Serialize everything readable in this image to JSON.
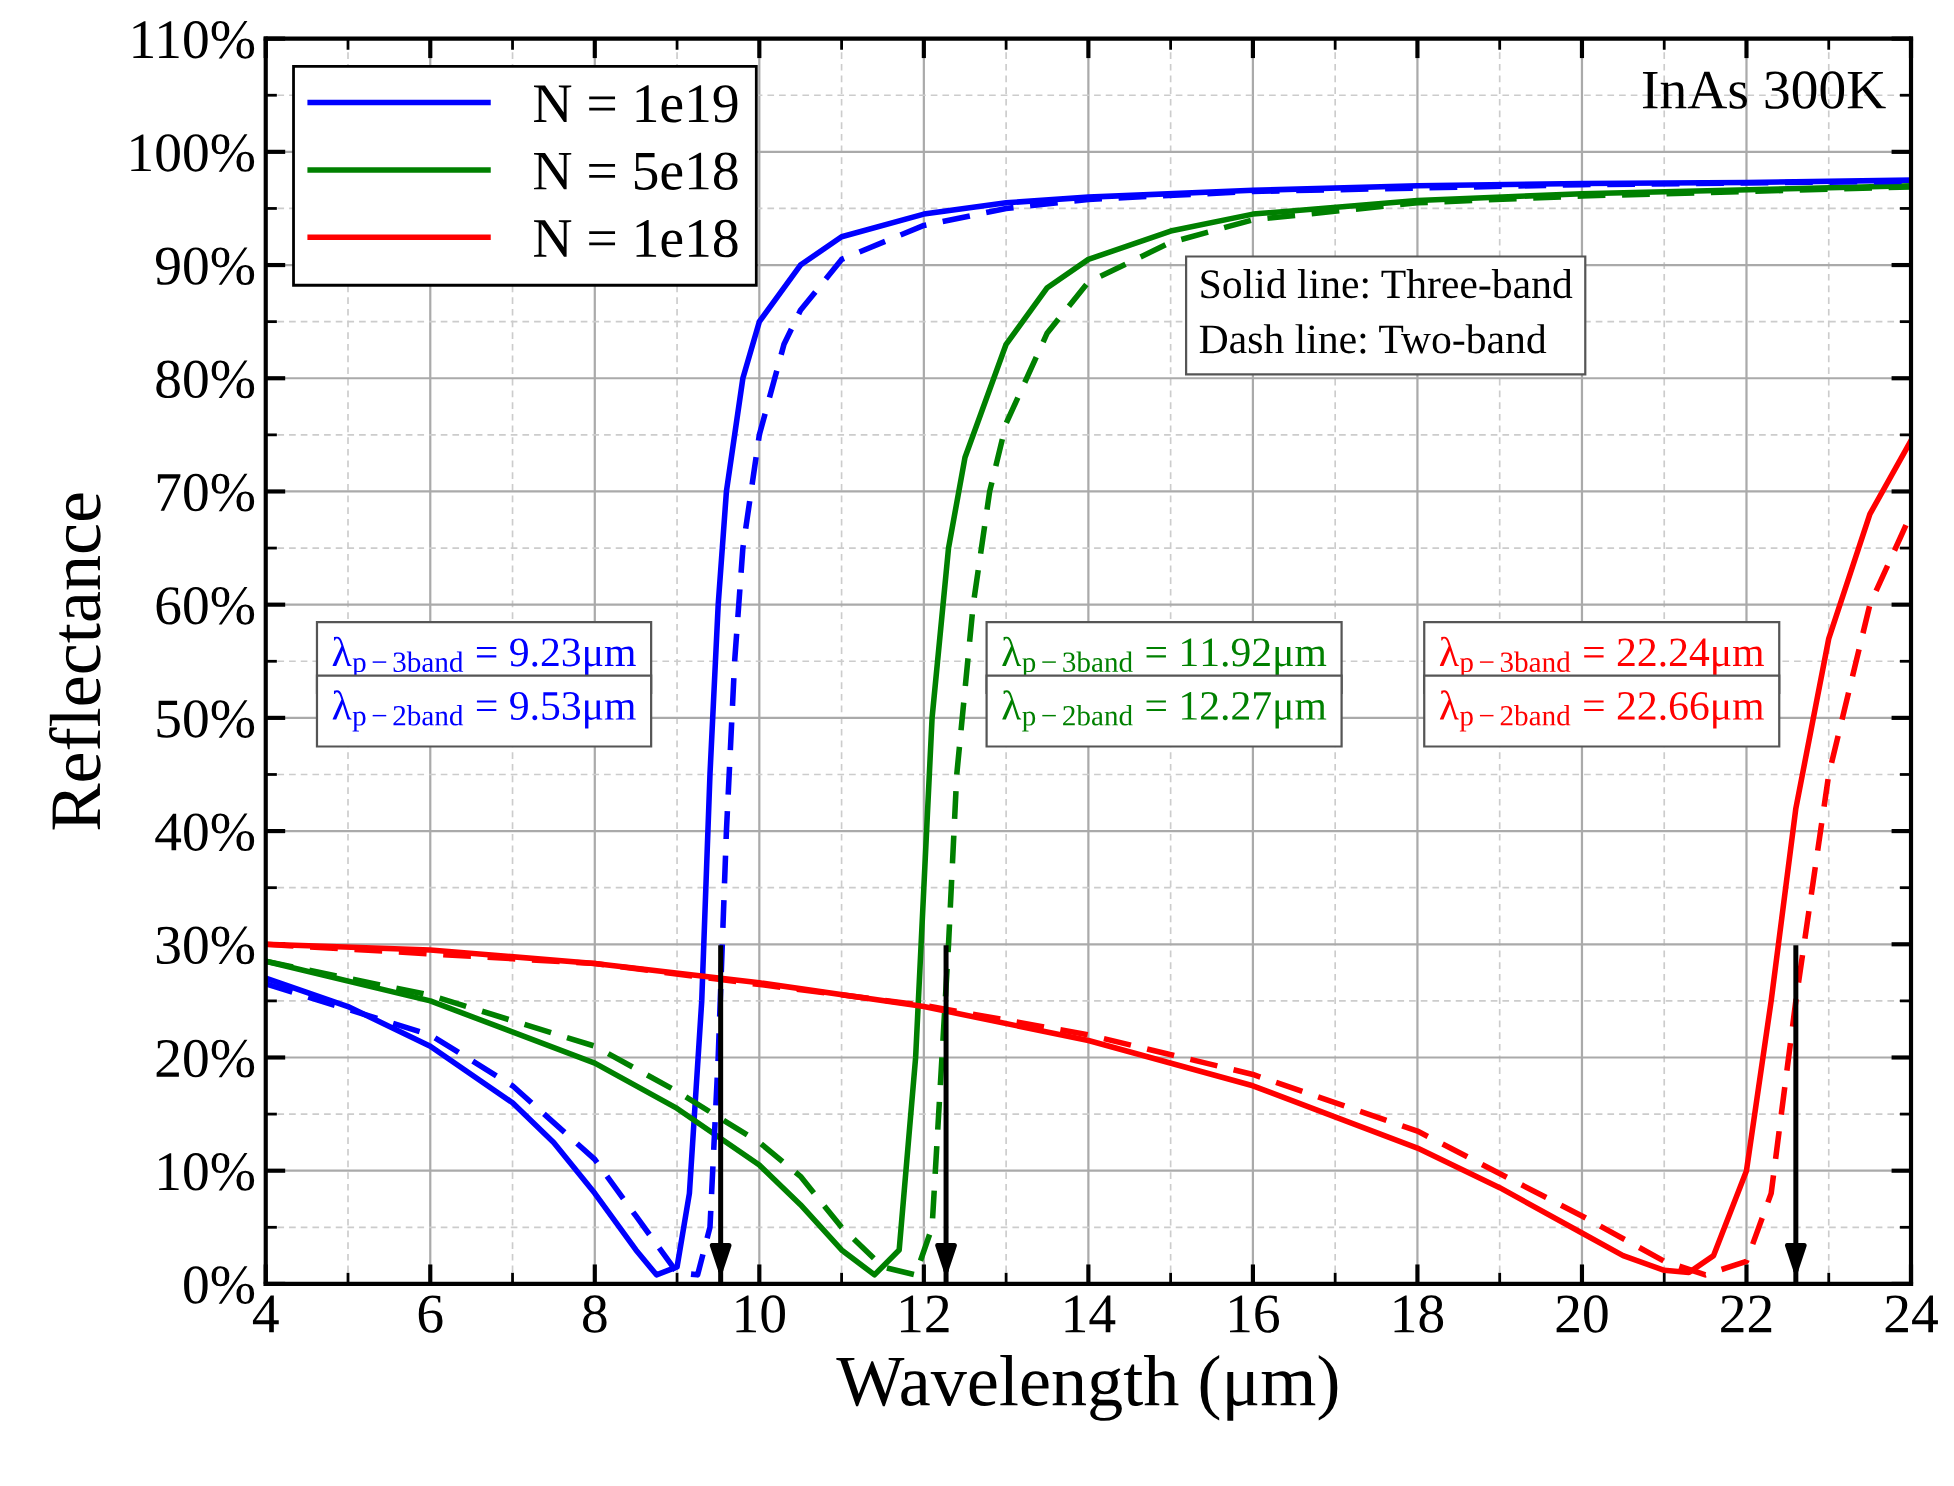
{
  "chart_data": {
    "type": "line",
    "xlabel": "Wavelength (μm)",
    "ylabel": "Reflectance",
    "xlim": [
      4,
      24
    ],
    "xticks": [
      4,
      6,
      8,
      10,
      12,
      14,
      16,
      18,
      20,
      22,
      24
    ],
    "ylim": [
      0,
      110
    ],
    "yticks": [
      {
        "value": 0,
        "label": "0%"
      },
      {
        "value": 10,
        "label": "10%"
      },
      {
        "value": 20,
        "label": "20%"
      },
      {
        "value": 30,
        "label": "30%"
      },
      {
        "value": 40,
        "label": "40%"
      },
      {
        "value": 50,
        "label": "50%"
      },
      {
        "value": 60,
        "label": "60%"
      },
      {
        "value": 70,
        "label": "70%"
      },
      {
        "value": 80,
        "label": "80%"
      },
      {
        "value": 90,
        "label": "90%"
      },
      {
        "value": 100,
        "label": "100%"
      },
      {
        "value": 110,
        "label": "110%"
      }
    ],
    "grid": true,
    "legend": "top left",
    "series": [
      {
        "name": "N = 1e19",
        "color": "#0000ff",
        "line_style": "solid",
        "x": [
          4,
          5,
          6,
          7,
          7.5,
          8,
          8.5,
          8.75,
          9.0,
          9.15,
          9.3,
          9.4,
          9.5,
          9.6,
          9.8,
          10,
          10.5,
          11,
          12,
          13,
          14,
          16,
          18,
          20,
          22,
          24
        ],
        "values": [
          27,
          24.5,
          21,
          16,
          12.5,
          8,
          3,
          0.8,
          1.5,
          8,
          25,
          45,
          60,
          70,
          80,
          85,
          90,
          92.5,
          94.5,
          95.5,
          96,
          96.6,
          97,
          97.2,
          97.3,
          97.5
        ]
      },
      {
        "name": "N = 5e18",
        "color": "#008000",
        "line_style": "solid",
        "x": [
          4,
          6,
          8,
          9,
          10,
          10.5,
          11,
          11.4,
          11.7,
          11.9,
          12.0,
          12.1,
          12.3,
          12.5,
          13,
          13.5,
          14,
          15,
          16,
          18,
          20,
          24
        ],
        "values": [
          28.5,
          25,
          19.5,
          15.5,
          10.5,
          7,
          3,
          0.8,
          3,
          20,
          35,
          50,
          65,
          73,
          83,
          88,
          90.5,
          93,
          94.5,
          95.7,
          96.3,
          97
        ]
      },
      {
        "name": "N = 1e18",
        "color": "#ff0000",
        "line_style": "solid",
        "x": [
          4,
          6,
          8,
          10,
          12,
          14,
          16,
          18,
          19,
          20,
          20.5,
          21,
          21.3,
          21.6,
          22,
          22.3,
          22.6,
          23,
          23.5,
          24
        ],
        "values": [
          30,
          29.5,
          28.3,
          26.6,
          24.5,
          21.5,
          17.5,
          12,
          8.5,
          4.5,
          2.5,
          1.2,
          1,
          2.5,
          10,
          25,
          42,
          57,
          68,
          74.5
        ]
      },
      {
        "color": "#0000ff",
        "line_style": "dashed",
        "x": [
          4,
          6,
          7,
          8,
          8.5,
          9,
          9.25,
          9.4,
          9.5,
          9.6,
          9.7,
          9.8,
          10,
          10.3,
          10.5,
          11,
          12,
          13,
          14,
          16,
          20,
          24
        ],
        "values": [
          26.5,
          22,
          17.5,
          11,
          6,
          1,
          0.8,
          5,
          20,
          40,
          55,
          65,
          75,
          83,
          86,
          90.5,
          93.5,
          95,
          95.8,
          96.5,
          97.1,
          97.4
        ]
      },
      {
        "color": "#008000",
        "line_style": "dashed",
        "x": [
          4,
          6,
          8,
          9,
          10,
          10.5,
          11,
          11.5,
          11.9,
          12.1,
          12.3,
          12.4,
          12.6,
          12.8,
          13,
          13.5,
          14,
          15,
          16,
          18,
          20,
          24
        ],
        "values": [
          28.5,
          25.5,
          21,
          17,
          12.5,
          9.5,
          5,
          1.5,
          0.8,
          5,
          30,
          45,
          60,
          70,
          76,
          84,
          88.5,
          92,
          94,
          95.5,
          96.1,
          96.9
        ]
      },
      {
        "color": "#ff0000",
        "line_style": "dashed",
        "x": [
          4,
          8,
          12,
          14,
          16,
          18,
          20,
          21,
          21.5,
          22,
          22.3,
          22.6,
          23,
          23.5,
          24
        ],
        "values": [
          30,
          28.3,
          24.6,
          22,
          18.5,
          13.5,
          6,
          2,
          0.8,
          2,
          8,
          25,
          45,
          60,
          68
        ]
      }
    ],
    "annotations": [
      "InAs 300K",
      "Solid line: Three-band\nDash line: Two-band",
      "λ$_{p−3band}$ = 9.23μm",
      "λ$_{p−3band}$ = 11.92μm",
      "λ$_{p−3band}$ = 22.24μm",
      "λ$_{p−2band}$ = 9.53μm",
      "λ$_{p−2band}$ = 12.27μm",
      "λ$_{p−2band}$ = 22.66μm"
    ],
    "ref_lines": [
      {
        "axis": "x",
        "value": 9.53,
        "color": "#000000"
      },
      {
        "axis": "x",
        "value": 12.27,
        "color": "#000000"
      },
      {
        "axis": "x",
        "value": 22.6,
        "color": "#000000"
      }
    ]
  }
}
